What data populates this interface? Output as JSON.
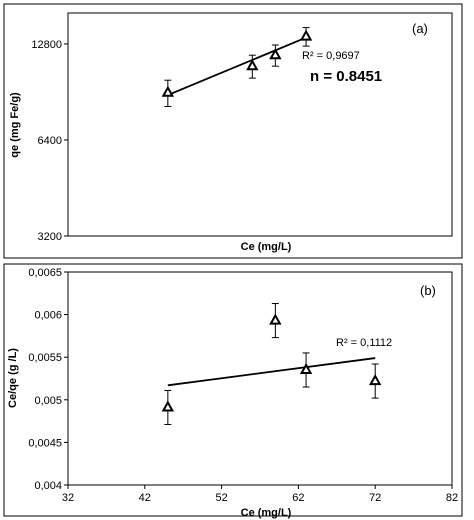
{
  "chart_data": [
    {
      "panel": "(a)",
      "type": "scatter",
      "xlabel": "Ce (mg/L)",
      "ylabel": "qe (mg Fe/g)",
      "y_scale": "log",
      "y_ticks": [
        "3200",
        "6400",
        "12800"
      ],
      "ylim": [
        3200,
        16000
      ],
      "xlim": [
        32,
        82
      ],
      "x_tick_labels_shown": false,
      "grid": false,
      "points": [
        {
          "x": 45,
          "y": 9000,
          "err": 850
        },
        {
          "x": 56,
          "y": 10900,
          "err": 900
        },
        {
          "x": 59,
          "y": 11800,
          "err": 900
        },
        {
          "x": 63,
          "y": 13500,
          "err": 900
        }
      ],
      "trendline": {
        "x": [
          45,
          63
        ],
        "y": [
          8850,
          13400
        ]
      },
      "annotations": {
        "r2": "R² = 0,9697",
        "n": "n = 0.8451"
      },
      "marker": "open-triangle"
    },
    {
      "panel": "(b)",
      "type": "scatter",
      "xlabel": "Ce (mg/L)",
      "ylabel": "Ce/qe (g /L)",
      "x_ticks": [
        "32",
        "42",
        "52",
        "62",
        "72",
        "82"
      ],
      "y_ticks": [
        "0,004",
        "0,0045",
        "0,005",
        "0,0055",
        "0,006",
        "0,0065"
      ],
      "xlim": [
        32,
        82
      ],
      "ylim": [
        0.004,
        0.0065
      ],
      "grid": false,
      "points": [
        {
          "x": 45,
          "y": 0.00491,
          "err": 0.0002
        },
        {
          "x": 59,
          "y": 0.00593,
          "err": 0.0002
        },
        {
          "x": 63,
          "y": 0.00535,
          "err": 0.0002
        },
        {
          "x": 72,
          "y": 0.00522,
          "err": 0.0002
        }
      ],
      "trendline": {
        "x": [
          45,
          72
        ],
        "y": [
          0.00517,
          0.00549
        ]
      },
      "annotations": {
        "r2": "R² = 0,1112"
      },
      "marker": "open-triangle"
    }
  ]
}
